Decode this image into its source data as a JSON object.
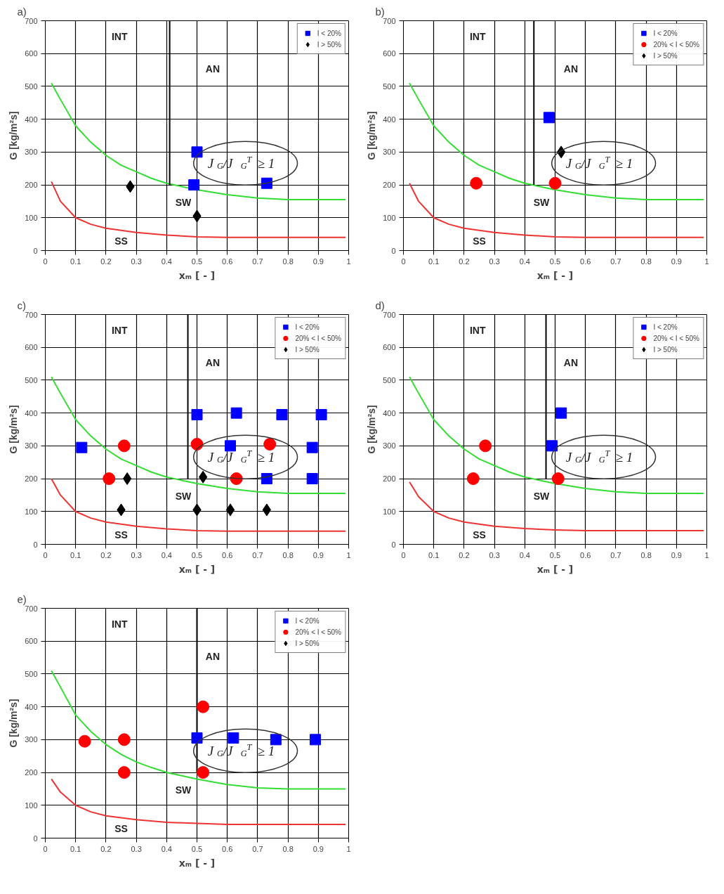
{
  "chart_data": [
    {
      "type": "scatter",
      "title": "a)",
      "xlabel": "xₘ [ - ]",
      "ylabel": "G [kg/m²s]",
      "xlim": [
        0,
        1
      ],
      "ylim": [
        0,
        700
      ],
      "xticks": [
        0,
        0.1,
        0.2,
        0.3,
        0.4,
        0.5,
        0.6,
        0.7,
        0.8,
        0.9,
        1
      ],
      "yticks": [
        0,
        100,
        200,
        300,
        400,
        500,
        600,
        700
      ],
      "grid": true,
      "legend": "top right",
      "series": [
        {
          "type": "line",
          "color": "#33dd33",
          "x": [
            0.02,
            0.05,
            0.1,
            0.15,
            0.2,
            0.25,
            0.3,
            0.35,
            0.4,
            0.45,
            0.5,
            0.6,
            0.7,
            0.8,
            0.9,
            0.99
          ],
          "values": [
            510,
            460,
            380,
            330,
            290,
            260,
            240,
            220,
            205,
            195,
            185,
            170,
            160,
            155,
            155,
            155
          ]
        },
        {
          "type": "line",
          "color": "#ee3333",
          "x": [
            0.02,
            0.05,
            0.1,
            0.15,
            0.2,
            0.3,
            0.4,
            0.5,
            0.6,
            0.8,
            0.99
          ],
          "values": [
            210,
            150,
            100,
            80,
            68,
            55,
            47,
            42,
            40,
            40,
            40
          ]
        },
        {
          "type": "line",
          "color": "#000000",
          "x": [
            0.41,
            0.41
          ],
          "values": [
            200,
            700
          ]
        },
        {
          "name": "I < 20%",
          "color": "#0000ff",
          "marker": "square",
          "x": [
            0.5,
            0.49,
            0.73
          ],
          "values": [
            300,
            200,
            205
          ]
        },
        {
          "name": "I > 50%",
          "color": "#000000",
          "marker": "diamond",
          "x": [
            0.28,
            0.5
          ],
          "values": [
            195,
            105
          ]
        }
      ],
      "annotations": [
        "INT",
        "AN",
        "SW",
        "SS",
        "J$_{G}$/J$_{G}$$^{T}$ ≥ 1"
      ]
    },
    {
      "type": "scatter",
      "title": "b)",
      "xlabel": "xₘ [ - ]",
      "ylabel": "G [kg/m²s]",
      "xlim": [
        0,
        1
      ],
      "ylim": [
        0,
        700
      ],
      "xticks": [
        0,
        0.1,
        0.2,
        0.3,
        0.4,
        0.5,
        0.6,
        0.7,
        0.8,
        0.9,
        1
      ],
      "yticks": [
        0,
        100,
        200,
        300,
        400,
        500,
        600,
        700
      ],
      "grid": true,
      "legend": "top right",
      "series": [
        {
          "type": "line",
          "color": "#33dd33",
          "x": [
            0.02,
            0.05,
            0.1,
            0.15,
            0.2,
            0.25,
            0.3,
            0.35,
            0.4,
            0.45,
            0.5,
            0.6,
            0.7,
            0.8,
            0.9,
            0.99
          ],
          "values": [
            510,
            460,
            380,
            330,
            290,
            260,
            240,
            220,
            205,
            195,
            185,
            170,
            160,
            155,
            155,
            155
          ]
        },
        {
          "type": "line",
          "color": "#ee3333",
          "x": [
            0.02,
            0.05,
            0.1,
            0.15,
            0.2,
            0.3,
            0.4,
            0.5,
            0.6,
            0.8,
            0.99
          ],
          "values": [
            205,
            150,
            100,
            80,
            68,
            55,
            47,
            42,
            40,
            40,
            40
          ]
        },
        {
          "type": "line",
          "color": "#000000",
          "x": [
            0.43,
            0.43
          ],
          "values": [
            200,
            700
          ]
        },
        {
          "name": "I < 20%",
          "color": "#0000ff",
          "marker": "square",
          "x": [
            0.48
          ],
          "values": [
            405
          ]
        },
        {
          "name": "20% < I < 50%",
          "color": "#ff0000",
          "marker": "circle",
          "x": [
            0.24,
            0.5
          ],
          "values": [
            205,
            205
          ]
        },
        {
          "name": "I > 50%",
          "color": "#000000",
          "marker": "diamond",
          "x": [
            0.52
          ],
          "values": [
            300
          ]
        }
      ],
      "annotations": [
        "INT",
        "AN",
        "SW",
        "SS",
        "J$_{G}$/J$_{G}$$^{T}$ ≥ 1"
      ]
    },
    {
      "type": "scatter",
      "title": "c)",
      "xlabel": "xₘ [ - ]",
      "ylabel": "G [kg/m²s]",
      "xlim": [
        0,
        1
      ],
      "ylim": [
        0,
        700
      ],
      "xticks": [
        0,
        0.1,
        0.2,
        0.3,
        0.4,
        0.5,
        0.6,
        0.7,
        0.8,
        0.9,
        1
      ],
      "yticks": [
        0,
        100,
        200,
        300,
        400,
        500,
        600,
        700
      ],
      "grid": true,
      "legend": "top right",
      "series": [
        {
          "type": "line",
          "color": "#33dd33",
          "x": [
            0.02,
            0.05,
            0.1,
            0.15,
            0.2,
            0.25,
            0.3,
            0.35,
            0.4,
            0.45,
            0.5,
            0.6,
            0.7,
            0.8,
            0.9,
            0.99
          ],
          "values": [
            510,
            460,
            380,
            330,
            290,
            260,
            240,
            220,
            205,
            195,
            185,
            170,
            160,
            155,
            155,
            155
          ]
        },
        {
          "type": "line",
          "color": "#ee3333",
          "x": [
            0.02,
            0.05,
            0.1,
            0.15,
            0.2,
            0.3,
            0.4,
            0.5,
            0.6,
            0.8,
            0.99
          ],
          "values": [
            200,
            150,
            100,
            80,
            68,
            55,
            47,
            42,
            40,
            40,
            40
          ]
        },
        {
          "type": "line",
          "color": "#000000",
          "x": [
            0.47,
            0.47
          ],
          "values": [
            200,
            700
          ]
        },
        {
          "name": "I < 20%",
          "color": "#0000ff",
          "marker": "square",
          "x": [
            0.12,
            0.5,
            0.63,
            0.78,
            0.91,
            0.61,
            0.88,
            0.73,
            0.88
          ],
          "values": [
            295,
            395,
            400,
            395,
            395,
            300,
            295,
            200,
            200
          ]
        },
        {
          "name": "20% < I < 50%",
          "color": "#ff0000",
          "marker": "circle",
          "x": [
            0.26,
            0.21,
            0.5,
            0.63,
            0.74
          ],
          "values": [
            300,
            200,
            305,
            200,
            305
          ]
        },
        {
          "name": "I > 50%",
          "color": "#000000",
          "marker": "diamond",
          "x": [
            0.27,
            0.52,
            0.25,
            0.5,
            0.61,
            0.73
          ],
          "values": [
            200,
            205,
            105,
            105,
            105,
            105
          ]
        }
      ],
      "annotations": [
        "INT",
        "AN",
        "SW",
        "SS",
        "J$_{G}$/J$_{G}$$^{T}$ ≥ 1"
      ]
    },
    {
      "type": "scatter",
      "title": "d)",
      "xlabel": "xₘ [ - ]",
      "ylabel": "G [kg/m²s]",
      "xlim": [
        0,
        1
      ],
      "ylim": [
        0,
        700
      ],
      "xticks": [
        0,
        0.1,
        0.2,
        0.3,
        0.4,
        0.5,
        0.6,
        0.7,
        0.8,
        0.9,
        1
      ],
      "yticks": [
        0,
        100,
        200,
        300,
        400,
        500,
        600,
        700
      ],
      "grid": true,
      "legend": "top right",
      "series": [
        {
          "type": "line",
          "color": "#33dd33",
          "x": [
            0.02,
            0.05,
            0.1,
            0.15,
            0.2,
            0.25,
            0.3,
            0.35,
            0.4,
            0.45,
            0.5,
            0.6,
            0.7,
            0.8,
            0.9,
            0.99
          ],
          "values": [
            510,
            460,
            380,
            330,
            290,
            260,
            240,
            220,
            205,
            195,
            185,
            170,
            160,
            155,
            155,
            155
          ]
        },
        {
          "type": "line",
          "color": "#ee3333",
          "x": [
            0.02,
            0.05,
            0.1,
            0.15,
            0.2,
            0.3,
            0.4,
            0.5,
            0.6,
            0.8,
            0.99
          ],
          "values": [
            190,
            145,
            100,
            80,
            68,
            55,
            48,
            44,
            42,
            42,
            42
          ]
        },
        {
          "type": "line",
          "color": "#000000",
          "x": [
            0.47,
            0.47
          ],
          "values": [
            200,
            700
          ]
        },
        {
          "name": "I < 20%",
          "color": "#0000ff",
          "marker": "square",
          "x": [
            0.52,
            0.49
          ],
          "values": [
            400,
            300
          ]
        },
        {
          "name": "20% < I < 50%",
          "color": "#ff0000",
          "marker": "circle",
          "x": [
            0.27,
            0.23,
            0.51
          ],
          "values": [
            300,
            200,
            200
          ]
        },
        {
          "name": "I > 50%",
          "color": "#000000",
          "marker": "diamond"
        }
      ],
      "annotations": [
        "INT",
        "AN",
        "SW",
        "SS",
        "J$_{G}$/J$_{G}$$^{T}$ ≥ 1"
      ]
    },
    {
      "type": "scatter",
      "title": "e)",
      "xlabel": "xₘ [ - ]",
      "ylabel": "G [kg/m²s]",
      "xlim": [
        0,
        1
      ],
      "ylim": [
        0,
        700
      ],
      "xticks": [
        0,
        0.1,
        0.2,
        0.3,
        0.4,
        0.5,
        0.6,
        0.7,
        0.8,
        0.9,
        1
      ],
      "yticks": [
        0,
        100,
        200,
        300,
        400,
        500,
        600,
        700
      ],
      "grid": true,
      "legend": "top right",
      "series": [
        {
          "type": "line",
          "color": "#33dd33",
          "x": [
            0.02,
            0.05,
            0.1,
            0.15,
            0.2,
            0.25,
            0.3,
            0.35,
            0.4,
            0.45,
            0.5,
            0.6,
            0.7,
            0.8,
            0.9,
            0.99
          ],
          "values": [
            510,
            460,
            375,
            325,
            285,
            255,
            232,
            215,
            200,
            190,
            180,
            163,
            153,
            150,
            150,
            150
          ]
        },
        {
          "type": "line",
          "color": "#ee3333",
          "x": [
            0.02,
            0.05,
            0.1,
            0.15,
            0.2,
            0.3,
            0.4,
            0.5,
            0.6,
            0.8,
            0.99
          ],
          "values": [
            180,
            140,
            100,
            80,
            68,
            56,
            48,
            45,
            42,
            42,
            42
          ]
        },
        {
          "type": "line",
          "color": "#000000",
          "x": [
            0.5,
            0.5
          ],
          "values": [
            200,
            700
          ]
        },
        {
          "name": "I < 20%",
          "color": "#0000ff",
          "marker": "square",
          "x": [
            0.5,
            0.62,
            0.76,
            0.89
          ],
          "values": [
            305,
            305,
            300,
            300
          ]
        },
        {
          "name": "20% < I < 50%",
          "color": "#ff0000",
          "marker": "circle",
          "x": [
            0.13,
            0.26,
            0.26,
            0.52,
            0.52
          ],
          "values": [
            295,
            300,
            200,
            400,
            200
          ]
        },
        {
          "name": "I > 50%",
          "color": "#000000",
          "marker": "diamond"
        }
      ],
      "annotations": [
        "INT",
        "AN",
        "SW",
        "SS",
        "J$_{G}$/J$_{G}$$^{T}$ ≥ 1"
      ]
    }
  ]
}
